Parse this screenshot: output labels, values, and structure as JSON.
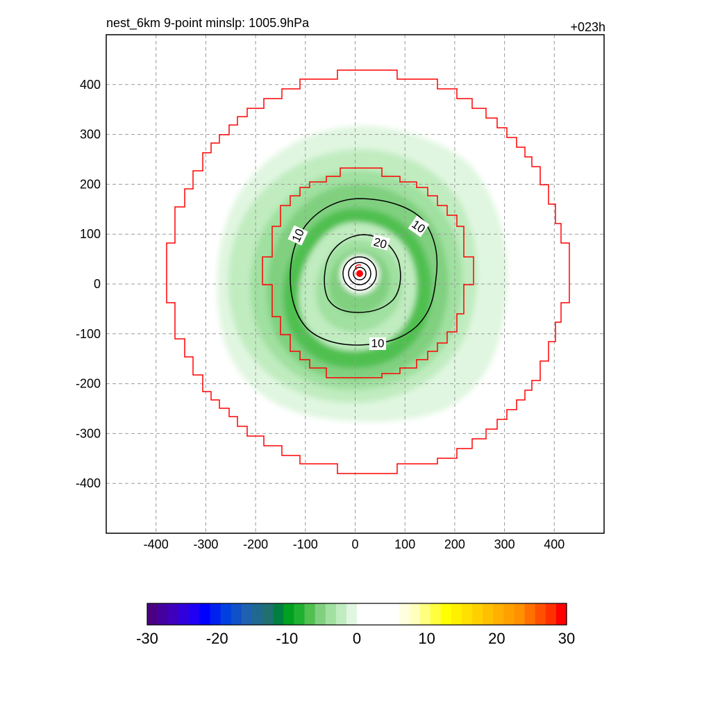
{
  "chart_data": {
    "type": "contour",
    "title_left": "nest_6km  9-point minslp: 1005.9hPa",
    "title_right": "+023h",
    "xlim": [
      -500,
      500
    ],
    "ylim": [
      -500,
      500
    ],
    "x_ticks": [
      -400,
      -300,
      -200,
      -100,
      0,
      100,
      200,
      300,
      400
    ],
    "y_ticks": [
      400,
      300,
      200,
      100,
      0,
      -100,
      -200,
      -300,
      -400
    ],
    "grid": true,
    "storm_center": {
      "x": 8,
      "y": 20
    },
    "contour_lines": [
      {
        "level": 10,
        "labels": [
          "10",
          "10",
          "10"
        ]
      },
      {
        "level": 20,
        "labels": [
          "20"
        ]
      }
    ],
    "boundary_colors": {
      "box": "#ff0000",
      "center_marker": "#ff0000"
    },
    "colorbar": {
      "min": -30,
      "max": 30,
      "tick_labels": [
        "-30",
        "-20",
        "-10",
        "0",
        "10",
        "20",
        "30"
      ],
      "colors": [
        "#4b0082",
        "#4500a0",
        "#3f00be",
        "#2f00dc",
        "#1f00f5",
        "#0000ff",
        "#0020f0",
        "#0040e0",
        "#1050c8",
        "#2060b0",
        "#206890",
        "#207070",
        "#008040",
        "#00a020",
        "#20b030",
        "#50c050",
        "#80d080",
        "#a0e0a0",
        "#c0ecc0",
        "#e0f6e0",
        "#ffffff",
        "#ffffff",
        "#ffffff",
        "#ffffff",
        "#ffffe0",
        "#ffffc0",
        "#ffff80",
        "#ffff40",
        "#ffff00",
        "#fff000",
        "#ffe000",
        "#ffd000",
        "#ffc000",
        "#ffb000",
        "#ffa000",
        "#ff9000",
        "#ff7000",
        "#ff5000",
        "#ff3000",
        "#ff0000"
      ]
    }
  }
}
